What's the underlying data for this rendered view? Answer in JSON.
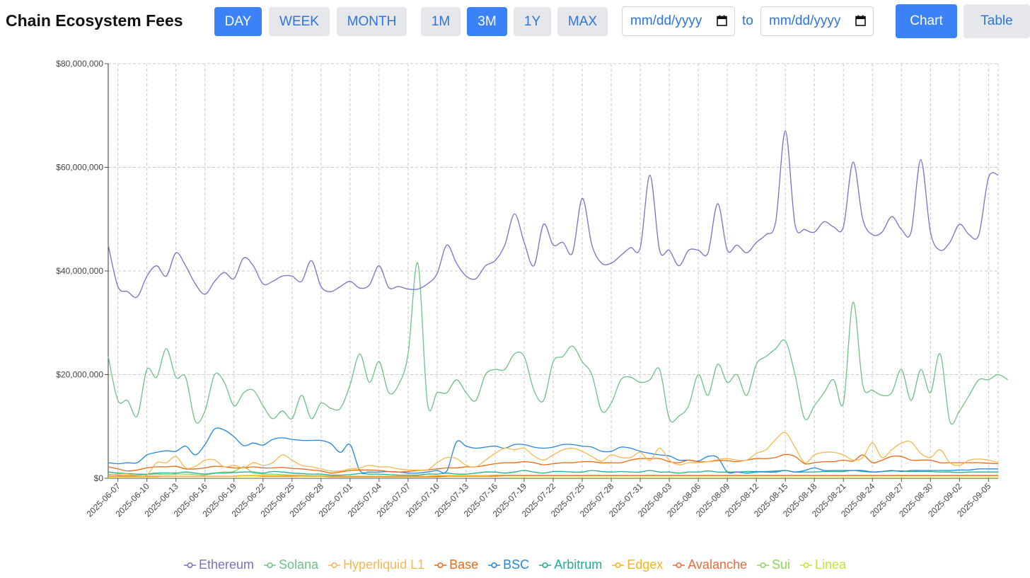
{
  "header": {
    "title": "Chain Ecosystem Fees",
    "granularity": [
      "DAY",
      "WEEK",
      "MONTH"
    ],
    "granularity_active": 0,
    "ranges": [
      "1M",
      "3M",
      "1Y",
      "MAX"
    ],
    "range_active": 1,
    "date_from_placeholder": "mm/dd/yyyy",
    "date_to_placeholder": "mm/dd/yyyy",
    "to_label": "to",
    "views": [
      "Chart",
      "Table"
    ],
    "view_active": 0
  },
  "chart_data": {
    "type": "line",
    "title": "",
    "xlabel": "",
    "ylabel": "",
    "ylim": [
      0,
      80000000
    ],
    "y_ticks": [
      0,
      20000000,
      40000000,
      60000000,
      80000000
    ],
    "y_tick_labels": [
      "$0",
      "$20,000,000",
      "$40,000,000",
      "$60,000,000",
      "$80,000,000"
    ],
    "grid": true,
    "legend_position": "bottom-center",
    "start_date": "2025-06-06",
    "x_tick_labels": [
      "2025-06-07",
      "2025-06-10",
      "2025-06-13",
      "2025-06-16",
      "2025-06-19",
      "2025-06-22",
      "2025-06-25",
      "2025-06-28",
      "2025-07-01",
      "2025-07-04",
      "2025-07-07",
      "2025-07-10",
      "2025-07-13",
      "2025-07-16",
      "2025-07-19",
      "2025-07-22",
      "2025-07-25",
      "2025-07-28",
      "2025-07-31",
      "2025-08-03",
      "2025-08-06",
      "2025-08-09",
      "2025-08-12",
      "2025-08-15",
      "2025-08-18",
      "2025-08-21",
      "2025-08-24",
      "2025-08-27",
      "2025-08-30",
      "2025-09-02",
      "2025-09-05"
    ],
    "series": [
      {
        "name": "Ethereum",
        "color": "#7a70c8",
        "values": [
          45,
          37,
          36,
          35,
          39,
          41,
          39,
          43.5,
          41,
          37.5,
          35.5,
          38,
          39.7,
          38.5,
          42.5,
          41,
          37.5,
          38,
          39,
          39,
          38,
          42,
          37,
          36,
          37,
          38,
          36.7,
          37.3,
          41,
          36.8,
          37,
          36.5,
          36.5,
          37.5,
          39.5,
          45,
          41.5,
          39,
          38.5,
          41,
          42,
          45,
          51,
          45.5,
          41,
          49,
          45,
          45.5,
          43.5,
          54,
          45,
          41.5,
          41.5,
          43,
          44.5,
          44.5,
          58.5,
          44,
          44,
          41,
          44,
          44,
          43.5,
          53,
          44,
          45,
          43.5,
          45.5,
          47,
          49.5,
          67,
          49,
          48,
          47.5,
          49.5,
          48.5,
          48.5,
          61,
          50,
          47,
          47.5,
          50.5,
          48,
          47.5,
          61.5,
          47.5,
          44,
          45.5,
          49,
          47,
          47,
          58,
          58.5
        ]
      },
      {
        "name": "Solana",
        "color": "#6cc287",
        "values": [
          23.5,
          15,
          15,
          12,
          21,
          19.5,
          25,
          19.5,
          19.5,
          11,
          13,
          20,
          18.5,
          14,
          16.5,
          17,
          14,
          11.5,
          13,
          11.5,
          16,
          11.5,
          14.5,
          13.5,
          13.5,
          18,
          24,
          18.5,
          22.5,
          16.5,
          18,
          24,
          41.5,
          14.5,
          16.5,
          16.5,
          19,
          16.5,
          15,
          20,
          21,
          21,
          24,
          23.5,
          17,
          15,
          22.5,
          23.5,
          25.5,
          22.5,
          20,
          13,
          14.5,
          19,
          19.5,
          18.5,
          19,
          21,
          11.5,
          12,
          14,
          20,
          16,
          22,
          18.5,
          20,
          16,
          22,
          23.5,
          25,
          26.5,
          20,
          11.5,
          14,
          16.5,
          19,
          14.5,
          34,
          18,
          17,
          16,
          16.5,
          21,
          15,
          21,
          16.5,
          24,
          11,
          13,
          16,
          19,
          19,
          20,
          19
        ]
      },
      {
        "name": "Hyperliquid L1",
        "color": "#f7b84e",
        "values": [
          0.6,
          0.8,
          0.8,
          0.5,
          0.6,
          3,
          3,
          4.2,
          2,
          2.3,
          3.5,
          3.5,
          2.2,
          2.5,
          2,
          3,
          2.5,
          3,
          4.5,
          3.5,
          2.5,
          2.2,
          1.8,
          1.4,
          1.4,
          1.8,
          2,
          2.5,
          2.2,
          2.2,
          1.8,
          1.6,
          1.6,
          1.6,
          3,
          4,
          3.8,
          2.5,
          2.2,
          3.5,
          4.8,
          5.8,
          5.5,
          5.8,
          4.3,
          3.5,
          4.5,
          5.5,
          5.8,
          5.2,
          4.2,
          3.3,
          4.5,
          4,
          4,
          5,
          3.4,
          5.8,
          3.5,
          2.6,
          3,
          3,
          3.2,
          3.6,
          3.8,
          3.5,
          3.5,
          4.8,
          5.5,
          7.5,
          8.8,
          6,
          3,
          4.5,
          5,
          5,
          4.5,
          3.5,
          4,
          6.8,
          4,
          5.5,
          6.8,
          7,
          4.8,
          4,
          5.5,
          3,
          2.5,
          3.5,
          3.7,
          3.5,
          3
        ]
      },
      {
        "name": "Base",
        "color": "#ea6a14",
        "values": [
          2.2,
          1.8,
          1.4,
          1.6,
          2,
          2.2,
          2.2,
          2.3,
          1.8,
          1.8,
          2,
          2.3,
          2.2,
          2,
          2,
          2.2,
          2,
          2,
          2.1,
          1.9,
          1.8,
          1.6,
          1.4,
          1,
          1.2,
          1.5,
          1.6,
          1.6,
          1.5,
          1.3,
          1.2,
          1.3,
          1.5,
          1.6,
          1.8,
          2,
          2,
          2.2,
          2.2,
          2.5,
          2.8,
          3,
          3,
          3.2,
          3,
          2.6,
          2.8,
          3,
          3,
          3.2,
          3.2,
          3,
          3,
          3,
          3.5,
          3.8,
          3.8,
          3.8,
          3.2,
          3,
          3.5,
          3.2,
          3.2,
          3.4,
          3.4,
          3.2,
          3.5,
          3.8,
          3.8,
          4,
          4.6,
          4.2,
          2.8,
          3,
          3.2,
          3.2,
          3.5,
          3.3,
          4.5,
          3,
          3.5,
          4.2,
          4.2,
          3.5,
          3.5,
          3.5,
          3,
          3,
          3,
          3,
          3,
          2.9,
          2.8
        ]
      },
      {
        "name": "BSC",
        "color": "#2486dd",
        "values": [
          3,
          2.8,
          3,
          3,
          4.5,
          5,
          5.3,
          5.2,
          6.2,
          4.5,
          6.5,
          9.5,
          9.3,
          8,
          6.3,
          6.8,
          6.4,
          7.5,
          7.8,
          7.5,
          7.3,
          7.3,
          7.3,
          6.7,
          5,
          6.5,
          1.5,
          1.2,
          1.2,
          1.3,
          1.2,
          1,
          1,
          1.2,
          1.5,
          1.4,
          7,
          6.2,
          5.8,
          6,
          6.2,
          5.8,
          6.5,
          6.5,
          6,
          5.8,
          6,
          6.5,
          6.5,
          6.2,
          6,
          5.2,
          5.2,
          6,
          5.8,
          5.2,
          4.8,
          4.5,
          4.3,
          3.5,
          3.5,
          3.3,
          4.2,
          4,
          1.2,
          1.2,
          1,
          1.2,
          1.2,
          1.2,
          1.5,
          1.2,
          1.5,
          2,
          1.5,
          1.5,
          1.5,
          1.5,
          1.5,
          1.2,
          1.3,
          1.5,
          1.3,
          1.5,
          1.5,
          1.5,
          1.5,
          1.5,
          1.6,
          1.6,
          1.8,
          1.8,
          1.8
        ]
      },
      {
        "name": "Arbitrum",
        "color": "#1bb094",
        "values": [
          1.2,
          1,
          0.9,
          0.8,
          0.8,
          1,
          1,
          1,
          1.2,
          1,
          0.8,
          1,
          1,
          1.1,
          1.2,
          1.2,
          1,
          1.3,
          1.2,
          1,
          0.9,
          0.8,
          0.8,
          0.6,
          0.6,
          0.7,
          0.9,
          0.8,
          0.8,
          0.7,
          0.6,
          0.6,
          0.6,
          0.8,
          0.8,
          1,
          0.8,
          0.8,
          1,
          1.2,
          1.2,
          1,
          1.2,
          1.5,
          1.2,
          1,
          1.3,
          1.3,
          1.2,
          1.2,
          1.5,
          1.3,
          1.2,
          1.3,
          1.2,
          1.2,
          1.5,
          1.2,
          1.2,
          1,
          1.2,
          1.2,
          1.4,
          1.2,
          1.2,
          1.2,
          1.3,
          1.3,
          1.3,
          1.4,
          1.5,
          1.2,
          1.2,
          1.2,
          1.3,
          1.3,
          1.3,
          1.5,
          1.3,
          1.2,
          1.3,
          1.4,
          1.4,
          1.3,
          1.3,
          1.3,
          1.2,
          1.2,
          1.1,
          1.2,
          1.2,
          1.2,
          1.2
        ]
      },
      {
        "name": "Edgex",
        "color": "#f5b323",
        "values": [
          0.3,
          0.3,
          0.3,
          0.3,
          0.3,
          0.3,
          0.4,
          0.4,
          0.4,
          0.4,
          0.4,
          0.4,
          0.4,
          0.4,
          0.5,
          0.5,
          0.5,
          0.5,
          0.5,
          0.5,
          0.4,
          0.4,
          0.4,
          0.4,
          0.4,
          0.4,
          0.4,
          0.4,
          0.4,
          0.4,
          0.4,
          0.4,
          0.4,
          0.4,
          0.5,
          0.5,
          0.5,
          0.5,
          0.5,
          0.5,
          0.6,
          0.6,
          0.6,
          0.6,
          0.6,
          0.6,
          0.6,
          0.6,
          0.6,
          0.6,
          0.6,
          0.6,
          0.6,
          0.6,
          0.6,
          0.6,
          0.6,
          0.6,
          0.6,
          0.6,
          0.6,
          0.6,
          0.6,
          0.6,
          0.6,
          0.6,
          0.6,
          0.6,
          0.6,
          0.6,
          0.6,
          0.6,
          0.6,
          0.6,
          0.6,
          0.6,
          0.6,
          0.6,
          0.6,
          0.6,
          0.6,
          0.6,
          0.6,
          0.6,
          0.6,
          0.6,
          0.6,
          0.6,
          0.6,
          0.6,
          0.6,
          0.6,
          0.6
        ]
      },
      {
        "name": "Avalanche",
        "color": "#ef6a3a",
        "values": [
          0.4,
          0.4,
          0.4,
          0.4,
          0.4,
          0.4,
          0.4,
          0.4,
          0.4,
          0.4,
          0.4,
          0.4,
          0.4,
          0.4,
          0.5,
          0.5,
          0.4,
          0.4,
          0.4,
          0.4,
          0.4,
          0.4,
          0.4,
          0.3,
          0.3,
          0.3,
          0.3,
          0.3,
          0.3,
          0.3,
          0.3,
          0.3,
          0.3,
          0.3,
          0.3,
          0.4,
          0.4,
          0.4,
          0.4,
          0.4,
          0.4,
          0.5,
          0.5,
          0.5,
          0.5,
          0.5,
          0.5,
          0.5,
          0.5,
          0.5,
          0.5,
          0.5,
          0.5,
          0.5,
          0.5,
          0.5,
          0.5,
          0.5,
          0.5,
          0.5,
          0.5,
          0.5,
          0.5,
          0.5,
          0.5,
          0.5,
          0.5,
          0.5,
          0.5,
          0.5,
          0.5,
          0.5,
          0.5,
          0.5,
          0.5,
          0.5,
          0.5,
          0.5,
          0.5,
          0.5,
          0.5,
          0.5,
          0.5,
          0.5,
          0.5,
          0.5,
          0.5,
          0.5,
          0.5,
          0.5,
          0.5,
          0.5,
          0.5
        ]
      },
      {
        "name": "Sui",
        "color": "#8bd65a",
        "values": [
          0.8,
          0.6,
          0.5,
          0.6,
          0.7,
          0.8,
          0.7,
          0.8,
          0.8,
          0.7,
          0.6,
          1,
          1.2,
          1.3,
          2.2,
          1,
          0.8,
          0.8,
          0.7,
          0.6,
          0.6,
          0.5,
          0.5,
          0.4,
          0.4,
          0.4,
          0.4,
          0.4,
          0.4,
          0.4,
          0.4,
          0.4,
          0.4,
          0.4,
          0.4,
          0.5,
          0.5,
          0.5,
          0.5,
          0.5,
          0.5,
          0.5,
          0.5,
          0.5,
          0.5,
          0.5,
          0.5,
          0.5,
          0.5,
          0.5,
          0.5,
          0.5,
          0.5,
          0.5,
          0.5,
          0.5,
          0.5,
          0.5,
          0.5,
          0.5,
          0.5,
          0.5,
          0.5,
          0.5,
          0.5,
          0.5,
          0.5,
          0.5,
          0.5,
          0.5,
          0.5,
          0.5,
          0.5,
          0.5,
          0.5,
          0.5,
          0.5,
          0.5,
          0.5,
          0.5,
          0.5,
          0.5,
          0.5,
          0.5,
          0.5,
          0.5,
          0.5,
          0.5,
          0.5,
          0.5,
          0.5,
          0.5,
          0.5
        ]
      },
      {
        "name": "Linea",
        "color": "#c5e33a",
        "values": [
          0.1,
          0.1,
          0.1,
          0.1,
          0.1,
          0.1,
          0.1,
          0.1,
          0.1,
          0.1,
          0.1,
          0.1,
          0.1,
          0.1,
          0.1,
          0.1,
          0.1,
          0.1,
          0.1,
          0.1,
          0.1,
          0.1,
          0.1,
          0.1,
          0.1,
          0.1,
          0.1,
          0.1,
          0.1,
          0.1,
          0.1,
          0.1,
          0.1,
          0.1,
          0.1,
          0.1,
          0.1,
          0.1,
          0.1,
          0.1,
          0.1,
          0.1,
          0.1,
          0.1,
          0.1,
          0.1,
          0.1,
          0.1,
          0.1,
          0.1,
          0.1,
          0.1,
          0.1,
          0.1,
          0.1,
          0.1,
          0.1,
          0.1,
          0.1,
          0.1,
          0.1,
          0.1,
          0.1,
          0.1,
          0.1,
          0.1,
          0.1,
          0.1,
          0.1,
          0.1,
          0.1,
          0.1,
          0.1,
          0.1,
          0.1,
          0.1,
          0.1,
          0.1,
          0.1,
          0.1,
          0.1,
          0.1,
          0.1,
          0.1,
          0.1,
          0.1,
          0.1,
          0.1,
          0.1,
          0.1,
          0.1,
          0.1,
          0.1
        ]
      }
    ],
    "values_unit": "millions USD"
  },
  "legend": {
    "items": [
      "Ethereum",
      "Solana",
      "Hyperliquid L1",
      "Base",
      "BSC",
      "Arbitrum",
      "Edgex",
      "Avalanche",
      "Sui",
      "Linea"
    ]
  }
}
